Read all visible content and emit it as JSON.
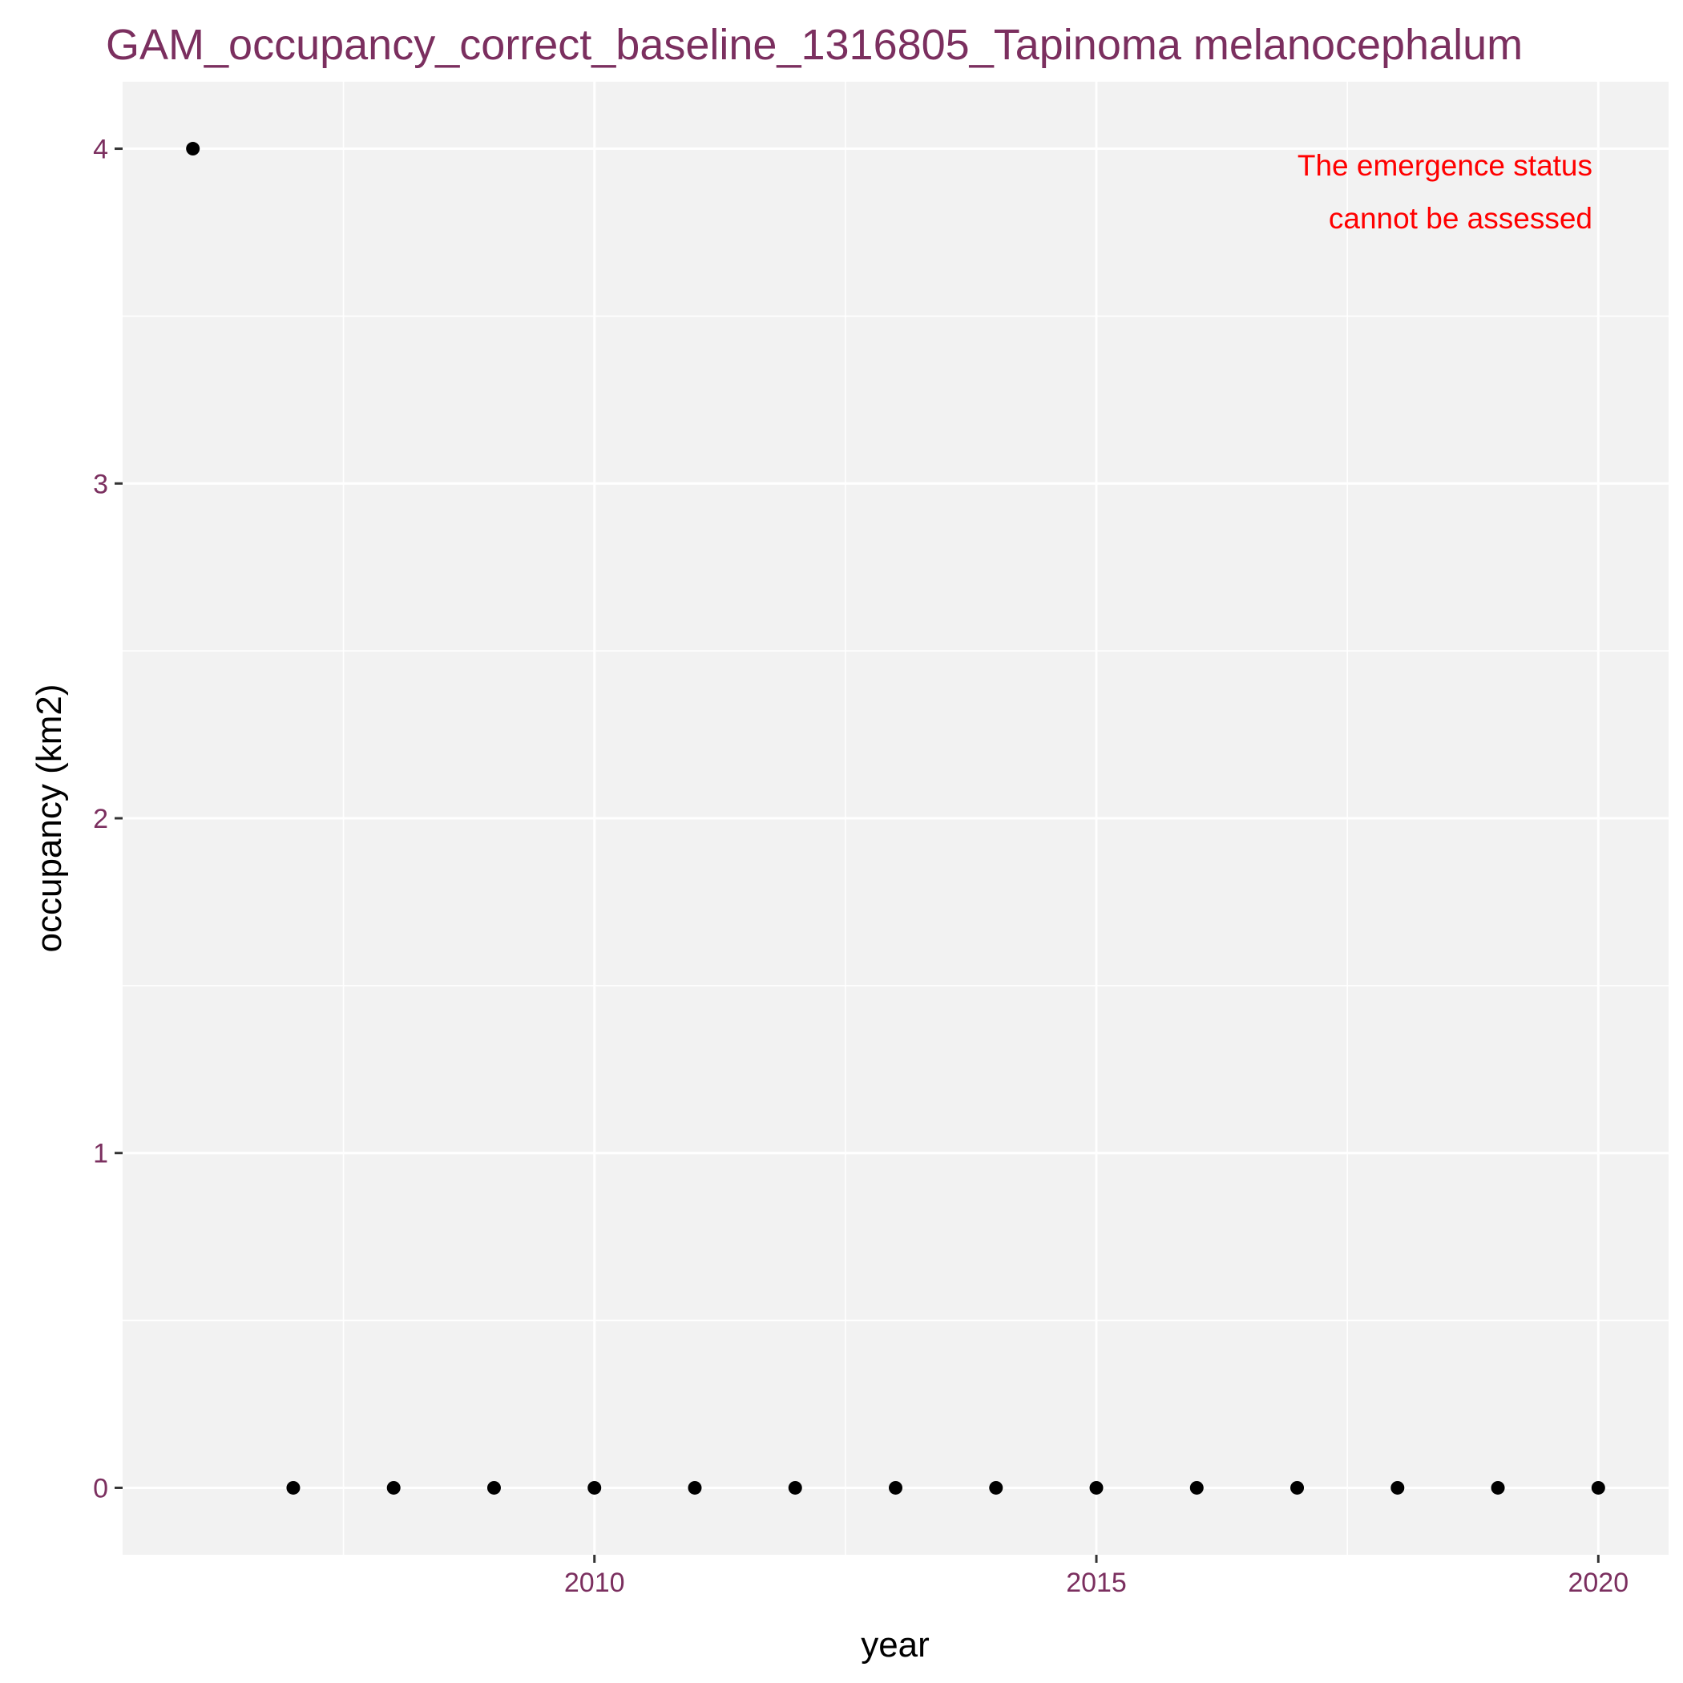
{
  "chart_data": {
    "type": "scatter",
    "title": "GAM_occupancy_correct_baseline_1316805_Tapinoma melanocephalum",
    "xlabel": "year",
    "ylabel": "occupancy (km2)",
    "x": [
      2006,
      2007,
      2008,
      2009,
      2010,
      2011,
      2012,
      2013,
      2014,
      2015,
      2016,
      2017,
      2018,
      2019,
      2020
    ],
    "y": [
      4,
      0,
      0,
      0,
      0,
      0,
      0,
      0,
      0,
      0,
      0,
      0,
      0,
      0,
      0
    ],
    "xlim": [
      2005.3,
      2020.7
    ],
    "ylim": [
      -0.2,
      4.2
    ],
    "x_major_ticks": [
      2010,
      2015,
      2020
    ],
    "x_minor_ticks": [
      2007.5,
      2012.5,
      2017.5
    ],
    "y_major_ticks": [
      0,
      1,
      2,
      3,
      4
    ],
    "y_minor_ticks": [
      0.5,
      1.5,
      2.5,
      3.5
    ],
    "annotation": [
      "The emergence status",
      "cannot be assessed"
    ],
    "grid": true,
    "colors": {
      "panel_background": "#f2f2f2",
      "grid_line": "#ffffff",
      "point": "#000000",
      "title_and_ticks": "#7b2f5f",
      "annotation": "#ff0000"
    }
  }
}
